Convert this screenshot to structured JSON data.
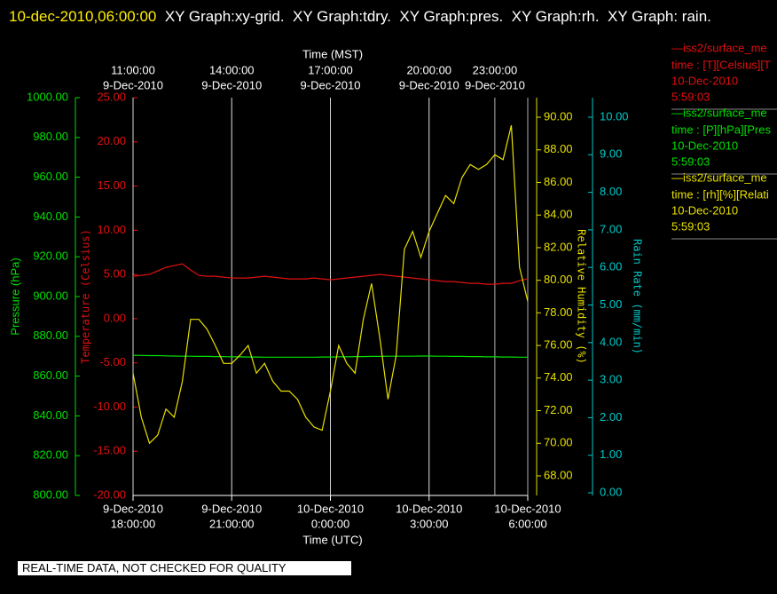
{
  "chart_data": {
    "type": "line",
    "title": "10-dec-2010,06:00:00",
    "subtitle": "XY Graph:xy-grid.  XY Graph:tdry.  XY Graph:pres.  XY Graph:rh.  XY Graph: rain.",
    "x_label_top": "Time (MST)",
    "x_label_bottom": "Time (UTC)",
    "xlim": [
      0,
      12
    ],
    "xticks": [
      {
        "value": 0,
        "label": [
          "9-Dec-2010",
          "18:00:00"
        ]
      },
      {
        "value": 3,
        "label": [
          "9-Dec-2010",
          "21:00:00"
        ]
      },
      {
        "value": 6,
        "label": [
          "10-Dec-2010",
          "0:00:00"
        ]
      },
      {
        "value": 9,
        "label": [
          "10-Dec-2010",
          "3:00:00"
        ]
      },
      {
        "value": 12,
        "label": [
          "10-Dec-2010",
          "6:00:00"
        ]
      }
    ],
    "x2ticks": [
      {
        "value": 0,
        "label": [
          "11:00:00",
          "9-Dec-2010"
        ]
      },
      {
        "value": 3,
        "label": [
          "14:00:00",
          "9-Dec-2010"
        ]
      },
      {
        "value": 6,
        "label": [
          "17:00:00",
          "9-Dec-2010"
        ]
      },
      {
        "value": 9,
        "label": [
          "20:00:00",
          "9-Dec-2010"
        ]
      },
      {
        "value": 11,
        "label": [
          "23:00:00",
          "9-Dec-2010"
        ]
      }
    ],
    "grid": true,
    "axes": [
      {
        "label": "Pressure (hPa)",
        "color": "#00e000",
        "lim": [
          800,
          1000
        ],
        "ticks": [
          {
            "value": 800,
            "label": "800.00"
          },
          {
            "value": 820,
            "label": "820.00"
          },
          {
            "value": 840,
            "label": "840.00"
          },
          {
            "value": 860,
            "label": "860.00"
          },
          {
            "value": 880,
            "label": "880.00"
          },
          {
            "value": 900,
            "label": "900.00"
          },
          {
            "value": 920,
            "label": "920.00"
          },
          {
            "value": 940,
            "label": "940.00"
          },
          {
            "value": 960,
            "label": "960.00"
          },
          {
            "value": 980,
            "label": "980.00"
          },
          {
            "value": 1000,
            "label": "1000.00"
          }
        ]
      },
      {
        "label": "Temperature (Celsius)",
        "color": "#e01010",
        "lim": [
          -20,
          25
        ],
        "ticks": [
          {
            "value": -20,
            "label": "-20.00"
          },
          {
            "value": -15,
            "label": "-15.00"
          },
          {
            "value": -10,
            "label": "-10.00"
          },
          {
            "value": -5,
            "label": "-5.00"
          },
          {
            "value": 0,
            "label": "0.00"
          },
          {
            "value": 5,
            "label": "5.00"
          },
          {
            "value": 10,
            "label": "10.00"
          },
          {
            "value": 15,
            "label": "15.00"
          },
          {
            "value": 20,
            "label": "20.00"
          },
          {
            "value": 25,
            "label": "25.00"
          }
        ]
      },
      {
        "label": "Relative Humidity (%)",
        "color": "#e8e000",
        "lim": [
          66.8,
          91.2
        ],
        "ticks": [
          {
            "value": 68,
            "label": "68.00"
          },
          {
            "value": 70,
            "label": "70.00"
          },
          {
            "value": 72,
            "label": "72.00"
          },
          {
            "value": 74,
            "label": "74.00"
          },
          {
            "value": 76,
            "label": "76.00"
          },
          {
            "value": 78,
            "label": "78.00"
          },
          {
            "value": 80,
            "label": "80.00"
          },
          {
            "value": 82,
            "label": "82.00"
          },
          {
            "value": 84,
            "label": "84.00"
          },
          {
            "value": 86,
            "label": "86.00"
          },
          {
            "value": 88,
            "label": "88.00"
          },
          {
            "value": 90,
            "label": "90.00"
          }
        ]
      },
      {
        "label": "Rain Rate (mm/min)",
        "color": "#00c8c8",
        "lim": [
          -0.07,
          10.52
        ],
        "ticks": [
          {
            "value": 0,
            "label": "0.00"
          },
          {
            "value": 1,
            "label": "1.00"
          },
          {
            "value": 2,
            "label": "2.00"
          },
          {
            "value": 3,
            "label": "3.00"
          },
          {
            "value": 4,
            "label": "4.00"
          },
          {
            "value": 5,
            "label": "5.00"
          },
          {
            "value": 6,
            "label": "6.00"
          },
          {
            "value": 7,
            "label": "7.00"
          },
          {
            "value": 8,
            "label": "8.00"
          },
          {
            "value": 9,
            "label": "9.00"
          },
          {
            "value": 10,
            "label": "10.00"
          }
        ]
      }
    ],
    "x": [
      0,
      0.25,
      0.5,
      0.75,
      1,
      1.25,
      1.5,
      1.75,
      2,
      2.25,
      2.5,
      2.75,
      3,
      3.25,
      3.5,
      3.75,
      4,
      4.25,
      4.5,
      4.75,
      5,
      5.25,
      5.5,
      5.75,
      6,
      6.25,
      6.5,
      6.75,
      7,
      7.25,
      7.5,
      7.75,
      8,
      8.25,
      8.5,
      8.75,
      9,
      9.25,
      9.5,
      9.75,
      10,
      10.25,
      10.5,
      10.75,
      11,
      11.25,
      11.5,
      11.75,
      12
    ],
    "series": [
      {
        "name": "—iss2/surface_me",
        "legend_lines": [
          "time : [T][Celsius][T",
          "10-Dec-2010",
          "5:59:03"
        ],
        "color": "#e01010",
        "axis": 1,
        "values": [
          4.8,
          4.9,
          5.0,
          5.4,
          5.8,
          6.0,
          6.2,
          5.5,
          4.9,
          4.8,
          4.8,
          4.7,
          4.6,
          4.6,
          4.6,
          4.7,
          4.8,
          4.7,
          4.6,
          4.5,
          4.5,
          4.5,
          4.6,
          4.5,
          4.4,
          4.5,
          4.6,
          4.7,
          4.8,
          4.9,
          5.0,
          4.9,
          4.8,
          4.7,
          4.6,
          4.5,
          4.4,
          4.3,
          4.2,
          4.2,
          4.1,
          4.0,
          4.0,
          3.9,
          3.9,
          4.0,
          4.0,
          4.3,
          4.5
        ]
      },
      {
        "name": "—iss2/surface_me",
        "legend_lines": [
          "time : [P][hPa][Pres",
          "10-Dec-2010",
          "5:59:03"
        ],
        "color": "#00e000",
        "axis": 0,
        "values": [
          870.5,
          870.4,
          870.3,
          870.3,
          870.2,
          870.1,
          870.0,
          870.0,
          869.9,
          869.9,
          869.8,
          869.8,
          869.7,
          869.7,
          869.6,
          869.6,
          869.5,
          869.5,
          869.5,
          869.5,
          869.5,
          869.5,
          869.5,
          869.6,
          869.6,
          869.7,
          869.7,
          869.8,
          869.8,
          869.9,
          869.9,
          870.0,
          870.0,
          870.0,
          870.0,
          870.1,
          870.1,
          870.0,
          870.0,
          869.9,
          869.9,
          869.8,
          869.8,
          869.7,
          869.7,
          869.6,
          869.6,
          869.5,
          869.5
        ]
      },
      {
        "name": "—iss2/surface_me",
        "legend_lines": [
          "time : [rh][%][Relati",
          "10-Dec-2010",
          "5:59:03"
        ],
        "color": "#e8e000",
        "axis": 2,
        "values": [
          74.3,
          71.6,
          70.0,
          70.5,
          72.1,
          71.6,
          73.8,
          77.6,
          77.6,
          77.0,
          76.0,
          74.9,
          74.9,
          75.4,
          76.0,
          74.3,
          74.9,
          73.8,
          73.2,
          73.2,
          72.7,
          71.6,
          71.0,
          70.8,
          73.2,
          76.0,
          74.9,
          74.3,
          77.6,
          79.8,
          76.5,
          72.7,
          75.4,
          81.9,
          83.0,
          81.4,
          83.0,
          84.1,
          85.2,
          84.7,
          86.3,
          87.1,
          86.8,
          87.1,
          87.7,
          87.4,
          89.5,
          80.8,
          78.7
        ]
      }
    ],
    "footer": "REAL-TIME DATA, NOT CHECKED FOR QUALITY"
  }
}
